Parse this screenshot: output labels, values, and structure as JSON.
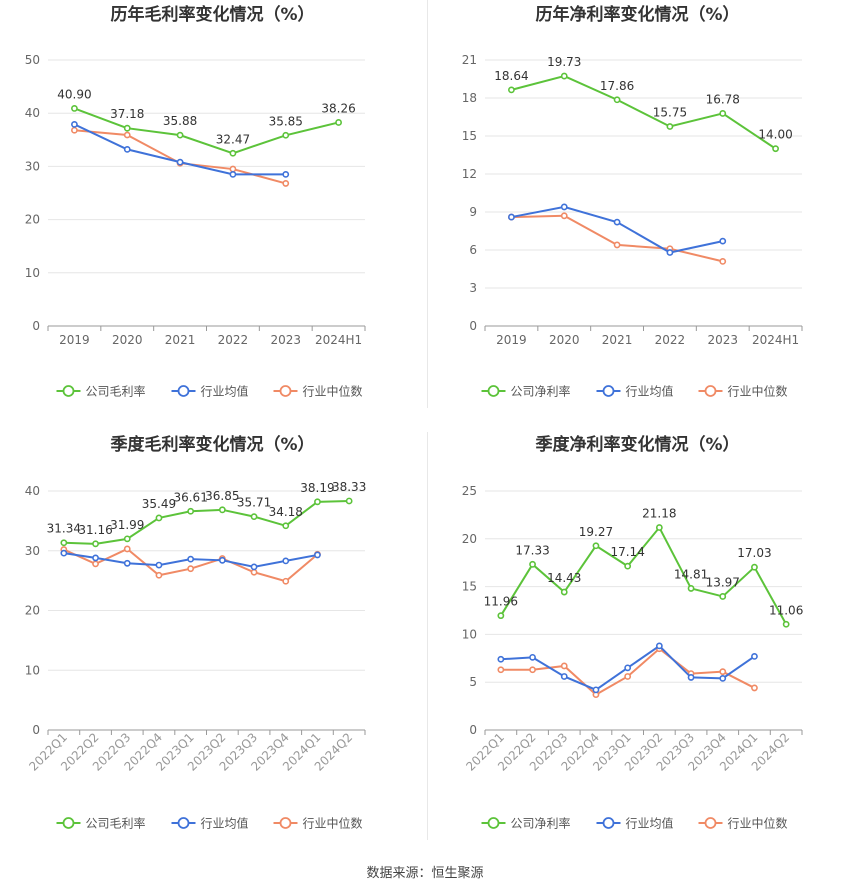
{
  "source": "数据来源：恒生聚源",
  "colors": {
    "company": "#5cc33a",
    "industry_avg": "#3f72d9",
    "industry_median": "#f08a65",
    "grid": "#e6e6e6",
    "axis": "#999999",
    "tick_text": "#666666",
    "title_text": "#333333",
    "label_text": "#333333"
  },
  "chart_data": [
    {
      "id": "annual-gross",
      "type": "line",
      "title": "历年毛利率变化情况（%）",
      "categories": [
        "2019",
        "2020",
        "2021",
        "2022",
        "2023",
        "2024H1"
      ],
      "ylim": [
        0,
        50
      ],
      "yticks": [
        0,
        10,
        20,
        30,
        40,
        50
      ],
      "grid": true,
      "legend": "bottom",
      "series": [
        {
          "name": "公司毛利率",
          "role": "company",
          "values": [
            40.9,
            37.18,
            35.88,
            32.47,
            35.85,
            38.26
          ],
          "labels": [
            "40.90",
            "37.18",
            "35.88",
            "32.47",
            "35.85",
            "38.26"
          ]
        },
        {
          "name": "行业均值",
          "role": "industry_avg",
          "values": [
            37.9,
            33.2,
            30.8,
            28.5,
            28.5,
            null
          ]
        },
        {
          "name": "行业中位数",
          "role": "industry_median",
          "values": [
            36.8,
            35.9,
            30.6,
            29.5,
            26.8,
            null
          ]
        }
      ]
    },
    {
      "id": "annual-net",
      "type": "line",
      "title": "历年净利率变化情况（%）",
      "categories": [
        "2019",
        "2020",
        "2021",
        "2022",
        "2023",
        "2024H1"
      ],
      "ylim": [
        0,
        21
      ],
      "yticks": [
        0,
        3,
        6,
        9,
        12,
        15,
        18,
        21
      ],
      "grid": true,
      "legend": "bottom",
      "series": [
        {
          "name": "公司净利率",
          "role": "company",
          "values": [
            18.64,
            19.73,
            17.86,
            15.75,
            16.78,
            14.0
          ],
          "labels": [
            "18.64",
            "19.73",
            "17.86",
            "15.75",
            "16.78",
            "14.00"
          ]
        },
        {
          "name": "行业均值",
          "role": "industry_avg",
          "values": [
            8.6,
            9.4,
            8.2,
            5.8,
            6.7,
            null
          ]
        },
        {
          "name": "行业中位数",
          "role": "industry_median",
          "values": [
            8.6,
            8.7,
            6.4,
            6.1,
            5.1,
            null
          ]
        }
      ]
    },
    {
      "id": "quarterly-gross",
      "type": "line",
      "title": "季度毛利率变化情况（%）",
      "categories": [
        "2022Q1",
        "2022Q2",
        "2022Q3",
        "2022Q4",
        "2023Q1",
        "2023Q2",
        "2023Q3",
        "2023Q4",
        "2024Q1",
        "2024Q2"
      ],
      "ylim": [
        0,
        40
      ],
      "yticks": [
        0,
        10,
        20,
        30,
        40
      ],
      "grid": true,
      "legend": "bottom",
      "series": [
        {
          "name": "公司毛利率",
          "role": "company",
          "values": [
            31.34,
            31.16,
            31.99,
            35.49,
            36.61,
            36.85,
            35.71,
            34.18,
            38.19,
            38.33
          ],
          "labels": [
            "31.34",
            "31.16",
            "31.99",
            "35.49",
            "36.61",
            "36.85",
            "35.71",
            "34.18",
            "38.19",
            "38.33"
          ]
        },
        {
          "name": "行业均值",
          "role": "industry_avg",
          "values": [
            29.6,
            28.8,
            27.9,
            27.6,
            28.6,
            28.4,
            27.3,
            28.3,
            29.3,
            null
          ]
        },
        {
          "name": "行业中位数",
          "role": "industry_median",
          "values": [
            30.2,
            27.8,
            30.3,
            25.9,
            27.0,
            28.7,
            26.4,
            24.9,
            29.4,
            null
          ]
        }
      ]
    },
    {
      "id": "quarterly-net",
      "type": "line",
      "title": "季度净利率变化情况（%）",
      "categories": [
        "2022Q1",
        "2022Q2",
        "2022Q3",
        "2022Q4",
        "2023Q1",
        "2023Q2",
        "2023Q3",
        "2023Q4",
        "2024Q1",
        "2024Q2"
      ],
      "ylim": [
        0,
        25
      ],
      "yticks": [
        0,
        5,
        10,
        15,
        20,
        25
      ],
      "grid": true,
      "legend": "bottom",
      "series": [
        {
          "name": "公司净利率",
          "role": "company",
          "values": [
            11.96,
            17.33,
            14.43,
            19.27,
            17.14,
            21.18,
            14.81,
            13.97,
            17.03,
            11.06
          ],
          "labels": [
            "11.96",
            "17.33",
            "14.43",
            "19.27",
            "17.14",
            "21.18",
            "14.81",
            "13.97",
            "17.03",
            "11.06"
          ]
        },
        {
          "name": "行业均值",
          "role": "industry_avg",
          "values": [
            7.4,
            7.6,
            5.6,
            4.2,
            6.5,
            8.8,
            5.5,
            5.4,
            7.7,
            null
          ]
        },
        {
          "name": "行业中位数",
          "role": "industry_median",
          "values": [
            6.3,
            6.3,
            6.7,
            3.7,
            5.6,
            8.5,
            5.9,
            6.1,
            4.4,
            null
          ]
        }
      ]
    }
  ]
}
